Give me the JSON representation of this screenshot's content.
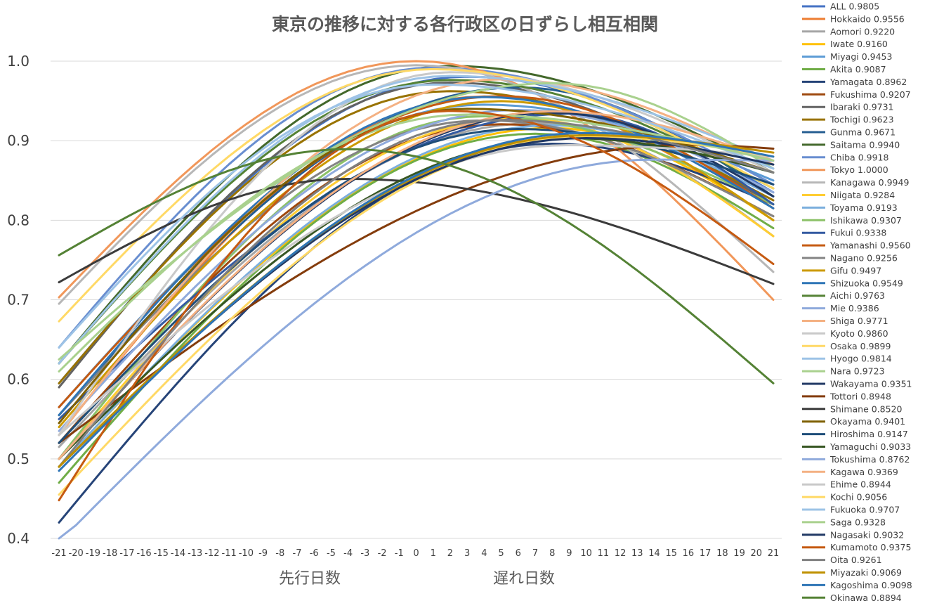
{
  "chart_data": {
    "type": "line",
    "title": "東京の推移に対する各行政区の日ずらし相互相関",
    "xlabel_left": "先行日数",
    "xlabel_right": "遅れ日数",
    "ylabel": "",
    "ylim": [
      0.4,
      1.0
    ],
    "yticks": [
      "0.4",
      "0.5",
      "0.6",
      "0.7",
      "0.8",
      "0.9",
      "1.0"
    ],
    "x": [
      -21,
      -20,
      -19,
      -18,
      -17,
      -16,
      -15,
      -14,
      -13,
      -12,
      -11,
      -10,
      -9,
      -8,
      -7,
      -6,
      -5,
      -4,
      -3,
      -2,
      -1,
      0,
      1,
      2,
      3,
      4,
      5,
      6,
      7,
      8,
      9,
      10,
      11,
      12,
      13,
      14,
      15,
      16,
      17,
      18,
      19,
      20,
      21
    ],
    "grid": true,
    "legend_position": "right",
    "series": [
      {
        "name": "ALL",
        "label": "ALL 0.9805",
        "color": "#4472C4",
        "peak": 0.9805,
        "lag": 3,
        "start": 0.595,
        "end": 0.835
      },
      {
        "name": "Hokkaido",
        "label": "Hokkaido 0.9556",
        "color": "#ED7D31",
        "peak": 0.9556,
        "lag": 4,
        "start": 0.53,
        "end": 0.8
      },
      {
        "name": "Aomori",
        "label": "Aomori 0.9220",
        "color": "#A5A5A5",
        "peak": 0.922,
        "lag": 7,
        "start": 0.515,
        "end": 0.78
      },
      {
        "name": "Iwate",
        "label": "Iwate 0.9160",
        "color": "#FFC000",
        "peak": 0.916,
        "lag": 8,
        "start": 0.49,
        "end": 0.8
      },
      {
        "name": "Miyagi",
        "label": "Miyagi 0.9453",
        "color": "#5B9BD5",
        "peak": 0.9453,
        "lag": 4,
        "start": 0.565,
        "end": 0.85
      },
      {
        "name": "Akita",
        "label": "Akita 0.9087",
        "color": "#70AD47",
        "peak": 0.9087,
        "lag": 7,
        "start": 0.47,
        "end": 0.79
      },
      {
        "name": "Yamagata",
        "label": "Yamagata 0.8962",
        "color": "#264478",
        "peak": 0.8962,
        "lag": 8,
        "start": 0.42,
        "end": 0.82
      },
      {
        "name": "Fukushima",
        "label": "Fukushima 0.9207",
        "color": "#9E480E",
        "peak": 0.9207,
        "lag": 5,
        "start": 0.52,
        "end": 0.805
      },
      {
        "name": "Ibaraki",
        "label": "Ibaraki 0.9731",
        "color": "#636363",
        "peak": 0.9731,
        "lag": 2,
        "start": 0.59,
        "end": 0.82
      },
      {
        "name": "Tochigi",
        "label": "Tochigi 0.9623",
        "color": "#997300",
        "peak": 0.9623,
        "lag": 2,
        "start": 0.595,
        "end": 0.825
      },
      {
        "name": "Gunma",
        "label": "Gunma 0.9671",
        "color": "#255E91",
        "peak": 0.9671,
        "lag": 6,
        "start": 0.555,
        "end": 0.83
      },
      {
        "name": "Saitama",
        "label": "Saitama 0.9940",
        "color": "#43682B",
        "peak": 0.994,
        "lag": 2,
        "start": 0.62,
        "end": 0.86
      },
      {
        "name": "Chiba",
        "label": "Chiba 0.9918",
        "color": "#698ED0",
        "peak": 0.9918,
        "lag": 1,
        "start": 0.64,
        "end": 0.845
      },
      {
        "name": "Tokyo",
        "label": "Tokyo 1.0000",
        "color": "#F1975A",
        "peak": 1.0,
        "lag": 0,
        "start": 0.703,
        "end": 0.7
      },
      {
        "name": "Kanagawa",
        "label": "Kanagawa 0.9949",
        "color": "#B7B7B7",
        "peak": 0.9949,
        "lag": 0,
        "start": 0.695,
        "end": 0.735
      },
      {
        "name": "Niigata",
        "label": "Niigata 0.9284",
        "color": "#FFCD33",
        "peak": 0.9284,
        "lag": 6,
        "start": 0.5,
        "end": 0.78
      },
      {
        "name": "Toyama",
        "label": "Toyama 0.9193",
        "color": "#7CAFDD",
        "peak": 0.9193,
        "lag": 8,
        "start": 0.49,
        "end": 0.83
      },
      {
        "name": "Ishikawa",
        "label": "Ishikawa 0.9307",
        "color": "#8CC168",
        "peak": 0.9307,
        "lag": 4,
        "start": 0.5,
        "end": 0.82
      },
      {
        "name": "Fukui",
        "label": "Fukui 0.9338",
        "color": "#335AA1",
        "peak": 0.9338,
        "lag": 9,
        "start": 0.55,
        "end": 0.82
      },
      {
        "name": "Yamanashi",
        "label": "Yamanashi 0.9560",
        "color": "#C55A11",
        "peak": 0.956,
        "lag": 5,
        "start": 0.565,
        "end": 0.815
      },
      {
        "name": "Nagano",
        "label": "Nagano 0.9256",
        "color": "#848484",
        "peak": 0.9256,
        "lag": 4,
        "start": 0.555,
        "end": 0.805
      },
      {
        "name": "Gifu",
        "label": "Gifu 0.9497",
        "color": "#CC9A00",
        "peak": 0.9497,
        "lag": 5,
        "start": 0.54,
        "end": 0.8
      },
      {
        "name": "Shizuoka",
        "label": "Shizuoka 0.9549",
        "color": "#2E75B6",
        "peak": 0.9549,
        "lag": 4,
        "start": 0.555,
        "end": 0.815
      },
      {
        "name": "Aichi",
        "label": "Aichi 0.9763",
        "color": "#548235",
        "peak": 0.9763,
        "lag": 2,
        "start": 0.62,
        "end": 0.84
      },
      {
        "name": "Mie",
        "label": "Mie 0.9386",
        "color": "#8FAADC",
        "peak": 0.9386,
        "lag": 6,
        "start": 0.535,
        "end": 0.835
      },
      {
        "name": "Shiga",
        "label": "Shiga 0.9771",
        "color": "#F4B183",
        "peak": 0.9771,
        "lag": 5,
        "start": 0.53,
        "end": 0.87
      },
      {
        "name": "Kyoto",
        "label": "Kyoto 0.9860",
        "color": "#C9C9C9",
        "peak": 0.986,
        "lag": 2,
        "start": 0.53,
        "end": 0.86
      },
      {
        "name": "Osaka",
        "label": "Osaka 0.9899",
        "color": "#FFD966",
        "peak": 0.9899,
        "lag": 1,
        "start": 0.673,
        "end": 0.84
      },
      {
        "name": "Hyogo",
        "label": "Hyogo 0.9814",
        "color": "#9DC3E6",
        "peak": 0.9814,
        "lag": 2,
        "start": 0.62,
        "end": 0.875
      },
      {
        "name": "Nara",
        "label": "Nara 0.9723",
        "color": "#A9D18E",
        "peak": 0.9723,
        "lag": 8,
        "start": 0.625,
        "end": 0.865
      },
      {
        "name": "Wakayama",
        "label": "Wakayama 0.9351",
        "color": "#203864",
        "peak": 0.9351,
        "lag": 8,
        "start": 0.5,
        "end": 0.83
      },
      {
        "name": "Tottori",
        "label": "Tottori 0.8948",
        "color": "#843C0C",
        "peak": 0.8948,
        "lag": 16,
        "start": 0.52,
        "end": 0.89
      },
      {
        "name": "Shimane",
        "label": "Shimane 0.8520",
        "color": "#3B3B3B",
        "peak": 0.852,
        "lag": -4,
        "start": 0.722,
        "end": 0.72
      },
      {
        "name": "Okayama",
        "label": "Okayama 0.9401",
        "color": "#7F6000",
        "peak": 0.9401,
        "lag": 3,
        "start": 0.545,
        "end": 0.86
      },
      {
        "name": "Hiroshima",
        "label": "Hiroshima 0.9147",
        "color": "#1F4E79",
        "peak": 0.9147,
        "lag": 6,
        "start": 0.52,
        "end": 0.845
      },
      {
        "name": "Yamaguchi",
        "label": "Yamaguchi 0.9033",
        "color": "#375623",
        "peak": 0.9033,
        "lag": 9,
        "start": 0.5,
        "end": 0.86
      },
      {
        "name": "Tokushima",
        "label": "Tokushima 0.8762",
        "color": "#8FAADC",
        "peak": 0.8762,
        "lag": 14,
        "start": 0.395,
        "end": 0.875
      },
      {
        "name": "Kagawa",
        "label": "Kagawa 0.9369",
        "color": "#F4B183",
        "peak": 0.9369,
        "lag": 8,
        "start": 0.5,
        "end": 0.875
      },
      {
        "name": "Ehime",
        "label": "Ehime 0.8944",
        "color": "#C9C9C9",
        "peak": 0.8944,
        "lag": 9,
        "start": 0.53,
        "end": 0.88
      },
      {
        "name": "Kochi",
        "label": "Kochi 0.9056",
        "color": "#FFD966",
        "peak": 0.9056,
        "lag": 10,
        "start": 0.455,
        "end": 0.88
      },
      {
        "name": "Fukuoka",
        "label": "Fukuoka 0.9707",
        "color": "#9DC3E6",
        "peak": 0.9707,
        "lag": 1,
        "start": 0.64,
        "end": 0.865
      },
      {
        "name": "Saga",
        "label": "Saga 0.9328",
        "color": "#A9D18E",
        "peak": 0.9328,
        "lag": 3,
        "start": 0.61,
        "end": 0.875
      },
      {
        "name": "Nagasaki",
        "label": "Nagasaki 0.9032",
        "color": "#203864",
        "peak": 0.9032,
        "lag": 10,
        "start": 0.49,
        "end": 0.87
      },
      {
        "name": "Kumamoto",
        "label": "Kumamoto 0.9375",
        "color": "#C55A11",
        "peak": 0.9375,
        "lag": 2,
        "start": 0.448,
        "end": 0.745
      },
      {
        "name": "Oita",
        "label": "Oita 0.9261",
        "color": "#7F7F7F",
        "peak": 0.9261,
        "lag": 5,
        "start": 0.49,
        "end": 0.86
      },
      {
        "name": "Miyazaki",
        "label": "Miyazaki 0.9069",
        "color": "#BF9000",
        "peak": 0.9069,
        "lag": 10,
        "start": 0.49,
        "end": 0.885
      },
      {
        "name": "Kagoshima",
        "label": "Kagoshima 0.9098",
        "color": "#2E75B6",
        "peak": 0.9098,
        "lag": 10,
        "start": 0.485,
        "end": 0.88
      },
      {
        "name": "Okinawa",
        "label": "Okinawa 0.8894",
        "color": "#548235",
        "peak": 0.8894,
        "lag": -4,
        "start": 0.756,
        "end": 0.595
      }
    ]
  }
}
